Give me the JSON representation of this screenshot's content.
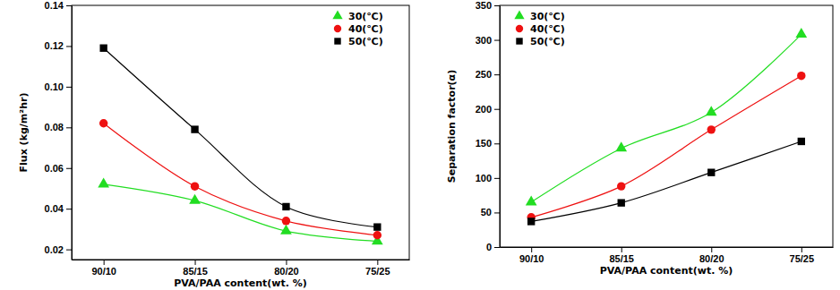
{
  "chart_data": [
    {
      "type": "line",
      "categories": [
        "90/10",
        "85/15",
        "80/20",
        "75/25"
      ],
      "xlabel": "PVA/PAA content(wt. %)",
      "ylabel": "Flux (kg/m²hr)",
      "ylim": [
        0.015,
        0.14
      ],
      "yticks": [
        0.02,
        0.04,
        0.06,
        0.08,
        {
          "value": 0.1,
          "label": "0.10"
        },
        0.12,
        0.14
      ],
      "legend": "upper right",
      "series": [
        {
          "name": "30(℃)",
          "color": "#22dd22",
          "marker": "triangle",
          "line_style": "solid",
          "values": [
            0.052,
            0.044,
            0.029,
            0.024
          ]
        },
        {
          "name": "40(℃)",
          "color": "#ee1111",
          "marker": "circle",
          "line_style": "solid",
          "values": [
            0.082,
            0.051,
            0.034,
            0.027
          ]
        },
        {
          "name": "50(℃)",
          "color": "#000000",
          "marker": "square",
          "line_style": "solid",
          "values": [
            0.119,
            0.079,
            0.041,
            0.031
          ]
        }
      ]
    },
    {
      "type": "line",
      "categories": [
        "90/10",
        "85/15",
        "80/20",
        "75/25"
      ],
      "xlabel": "PVA/PAA content(wt. %)",
      "ylabel": "Separation factor(α)",
      "ylim": [
        0,
        350
      ],
      "yticks": [
        0,
        50,
        100,
        150,
        200,
        250,
        300,
        350
      ],
      "legend": "upper left",
      "series": [
        {
          "name": "30(℃)",
          "color": "#22dd22",
          "marker": "triangle",
          "line_style": "solid",
          "values": [
            65,
            143,
            195,
            308
          ]
        },
        {
          "name": "40(℃)",
          "color": "#ee1111",
          "marker": "circle",
          "line_style": "solid",
          "values": [
            43,
            88,
            170,
            248
          ]
        },
        {
          "name": "50(℃)",
          "color": "#000000",
          "marker": "square",
          "line_style": "solid",
          "values": [
            37,
            64,
            108,
            153
          ]
        }
      ]
    }
  ]
}
